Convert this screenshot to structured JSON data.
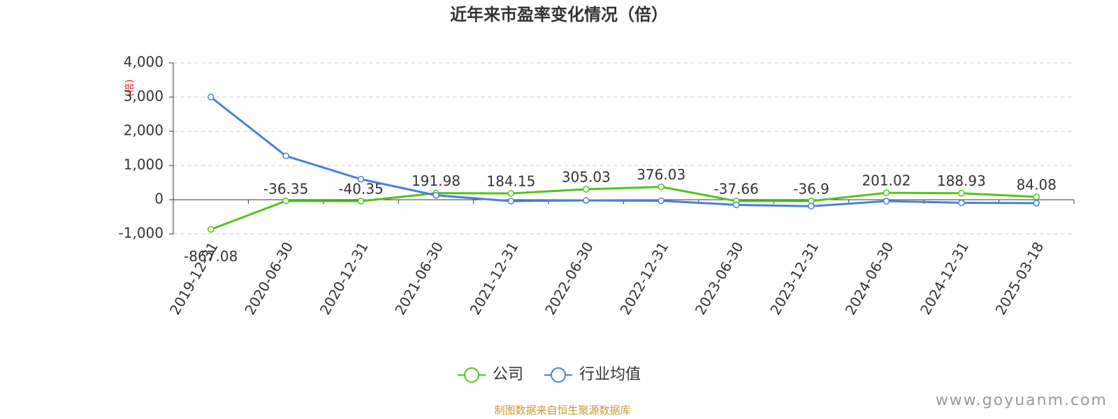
{
  "chart_data": {
    "type": "line",
    "title": "近年来市盈率变化情况（倍）",
    "y_unit": "(倍)",
    "categories": [
      "2019-12-31",
      "2020-06-30",
      "2020-12-31",
      "2021-06-30",
      "2021-12-31",
      "2022-06-30",
      "2022-12-31",
      "2023-06-30",
      "2023-12-31",
      "2024-06-30",
      "2024-12-31",
      "2025-03-18"
    ],
    "series": [
      {
        "name": "公司",
        "color": "#52c41a",
        "show_labels": true,
        "values": [
          -867.08,
          -36.35,
          -40.35,
          191.98,
          184.15,
          305.03,
          376.03,
          -37.66,
          -36.9,
          201.02,
          188.93,
          84.08
        ]
      },
      {
        "name": "行业均值",
        "color": "#4a7ee0",
        "show_labels": false,
        "values": [
          3000,
          1280,
          600,
          130,
          -40,
          -20,
          -30,
          -150,
          -190,
          -40,
          -90,
          -100
        ]
      }
    ],
    "ylim": [
      -1000,
      4000
    ],
    "yticks": [
      {
        "value": -1000,
        "label": "-1,000"
      },
      0,
      {
        "value": 1000,
        "label": "1,000"
      },
      {
        "value": 2000,
        "label": "2,000"
      },
      {
        "value": 3000,
        "label": "3,000"
      },
      {
        "value": 4000,
        "label": "4,000"
      }
    ],
    "grid": true,
    "source": "制图数据来自恒生聚源数据库",
    "watermark": "www.goyuanm.com"
  }
}
